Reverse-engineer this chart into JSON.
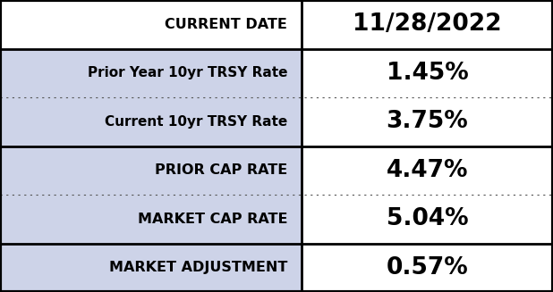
{
  "rows": [
    {
      "label": "CURRENT DATE",
      "value": "11/28/2022",
      "label_bg": "#ffffff",
      "value_bg": "#ffffff",
      "label_bold": true,
      "value_bold": true,
      "border_bottom": "solid",
      "label_fontsize": 11.5,
      "value_fontsize": 19
    },
    {
      "label": "Prior Year 10yr TRSY Rate",
      "value": "1.45%",
      "label_bg": "#cdd3e8",
      "value_bg": "#ffffff",
      "label_bold": true,
      "value_bold": true,
      "border_bottom": "dotted",
      "label_fontsize": 11,
      "value_fontsize": 19
    },
    {
      "label": "Current 10yr TRSY Rate",
      "value": "3.75%",
      "label_bg": "#cdd3e8",
      "value_bg": "#ffffff",
      "label_bold": true,
      "value_bold": true,
      "border_bottom": "solid",
      "label_fontsize": 11,
      "value_fontsize": 19
    },
    {
      "label": "PRIOR CAP RATE",
      "value": "4.47%",
      "label_bg": "#cdd3e8",
      "value_bg": "#ffffff",
      "label_bold": true,
      "value_bold": true,
      "border_bottom": "dotted",
      "label_fontsize": 11.5,
      "value_fontsize": 19
    },
    {
      "label": "MARKET CAP RATE",
      "value": "5.04%",
      "label_bg": "#cdd3e8",
      "value_bg": "#ffffff",
      "label_bold": true,
      "value_bold": true,
      "border_bottom": "solid",
      "label_fontsize": 11.5,
      "value_fontsize": 19
    },
    {
      "label": "MARKET ADJUSTMENT",
      "value": "0.57%",
      "label_bg": "#cdd3e8",
      "value_bg": "#ffffff",
      "label_bold": true,
      "value_bold": true,
      "border_bottom": "solid",
      "label_fontsize": 11.5,
      "value_fontsize": 19
    }
  ],
  "col_split": 0.545,
  "outer_border_color": "#000000",
  "inner_border_color": "#000000",
  "dotted_color": "#555555",
  "outer_lw": 3.0,
  "inner_lw": 2.0,
  "dotted_lw": 0.8,
  "fig_width": 6.18,
  "fig_height": 3.27,
  "dpi": 100,
  "fig_bg": "#ffffff"
}
